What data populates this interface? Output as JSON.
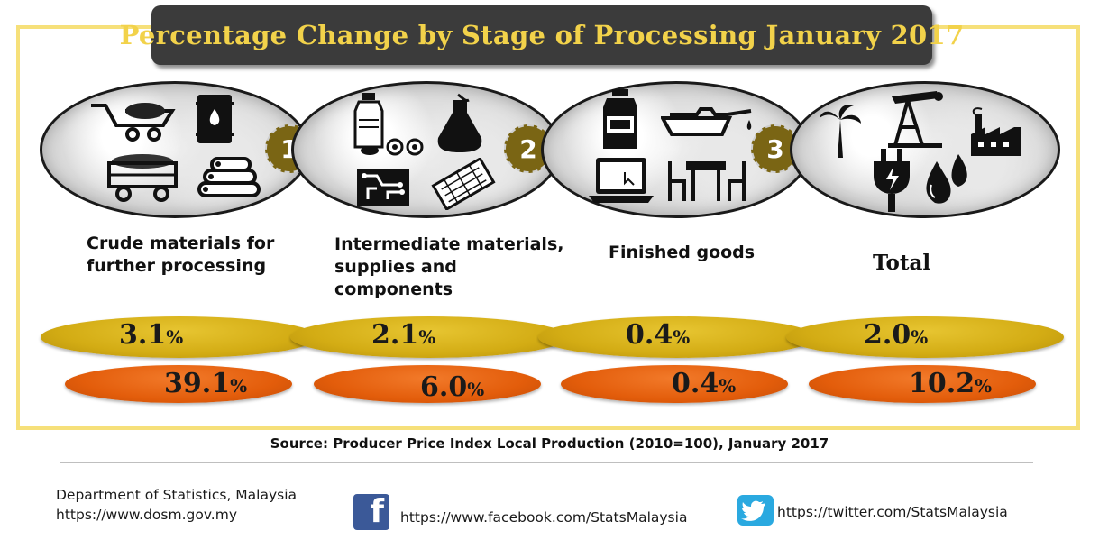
{
  "title": "Percentage Change by Stage of Processing January 2017",
  "colors": {
    "title_bg": "#3b3b3b",
    "title_text": "#f2d24a",
    "frame_border": "#f6e07a",
    "month_on_month_oval": "#d3ac14",
    "year_on_year_oval": "#e35d0b",
    "stage_number_badge": "#7a6514"
  },
  "stages": [
    {
      "number": "1",
      "label": "Crude materials for\nfurther  processing",
      "icons": [
        "wheelbarrow-icon",
        "oil-barrel-icon",
        "ore-cart-icon",
        "logs-icon"
      ],
      "month_on_month": "3.1",
      "year_on_year": "39.1"
    },
    {
      "number": "2",
      "label": "Intermediate materials,\nsupplies and\ncomponents",
      "icons": [
        "bottle-icon",
        "flask-icon",
        "circuit-board-icon",
        "printed-circuit-icon"
      ],
      "month_on_month": "2.1",
      "year_on_year": "6.0"
    },
    {
      "number": "3",
      "label": "Finished goods",
      "icons": [
        "oil-bottle-icon",
        "oil-can-icon",
        "laptop-icon",
        "furniture-icon"
      ],
      "month_on_month": "0.4",
      "year_on_year": "0.4"
    },
    {
      "number": "",
      "label": "Total",
      "icons": [
        "palm-tree-icon",
        "oil-pump-icon",
        "factory-icon",
        "power-plug-icon",
        "oil-drops-icon"
      ],
      "month_on_month": "2.0",
      "year_on_year": "10.2"
    }
  ],
  "percent_sign": "%",
  "source": "Source: Producer Price Index Local Production (2010=100), January 2017",
  "footer": {
    "org": "Department of Statistics, Malaysia",
    "website": "https://www.dosm.gov.my",
    "facebook": "https://www.facebook.com/StatsMalaysia",
    "twitter": "https://twitter.com/StatsMalaysia"
  }
}
